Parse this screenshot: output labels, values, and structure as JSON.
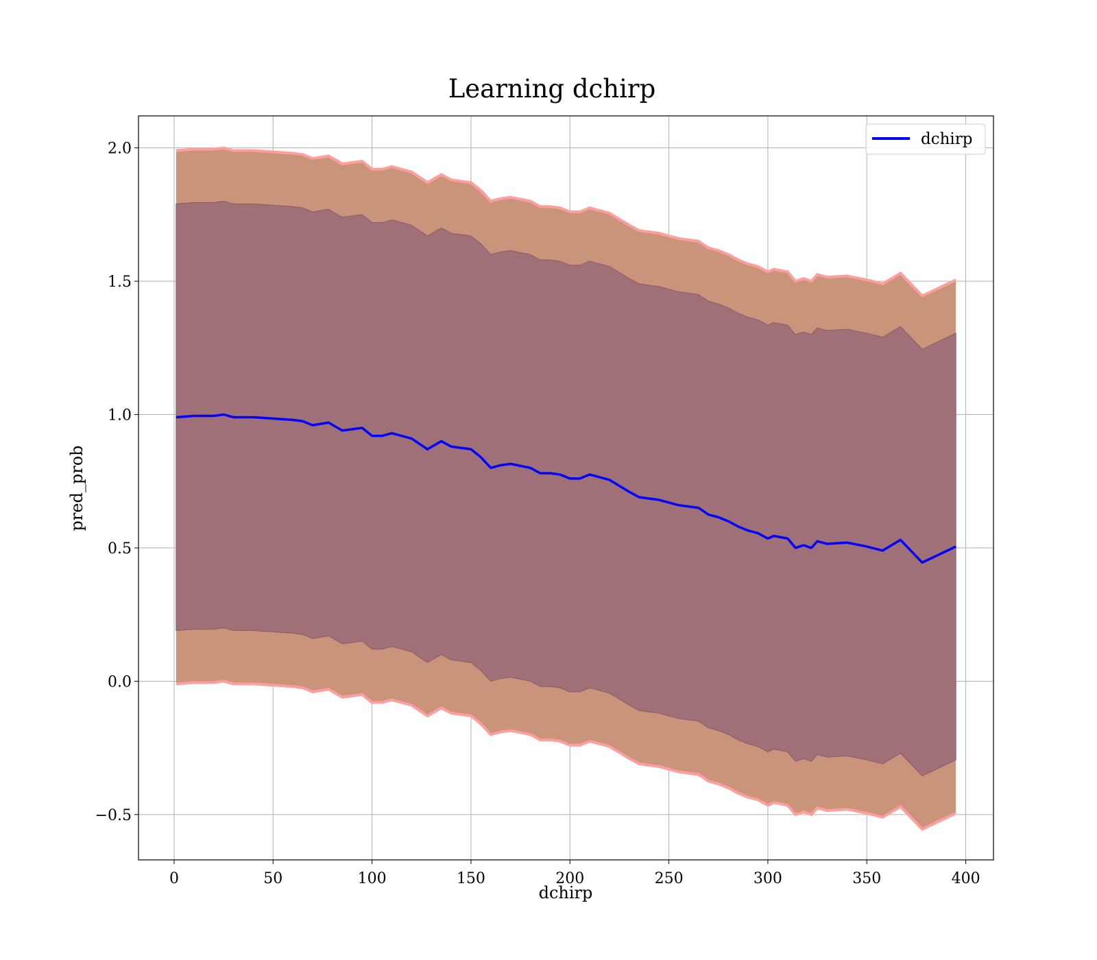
{
  "chart_data": {
    "type": "line",
    "title": "Learning dchirp",
    "xlabel": "dchirp",
    "ylabel": "pred_prob",
    "xlim": [
      -18,
      414
    ],
    "ylim": [
      -0.67,
      2.12
    ],
    "xticks": [
      0,
      50,
      100,
      150,
      200,
      250,
      300,
      350,
      400
    ],
    "yticks": [
      -0.5,
      0.0,
      0.5,
      1.0,
      1.5,
      2.0
    ],
    "ytick_labels": [
      "−0.5",
      "0.0",
      "0.5",
      "1.0",
      "1.5",
      "2.0"
    ],
    "grid": true,
    "legend": {
      "position": "top-right",
      "entries": [
        "dchirp"
      ]
    },
    "colors": {
      "line": "#0000ff",
      "outer_band": "#c99479",
      "inner_band": "#a07079",
      "band_edge": "#ff9e9e"
    },
    "series": [
      {
        "name": "dchirp",
        "x": [
          1,
          10,
          20,
          25,
          30,
          40,
          50,
          60,
          65,
          70,
          78,
          85,
          95,
          100,
          105,
          110,
          120,
          128,
          135,
          140,
          150,
          155,
          160,
          165,
          170,
          180,
          185,
          190,
          195,
          200,
          205,
          210,
          215,
          220,
          230,
          235,
          245,
          255,
          265,
          270,
          275,
          280,
          285,
          290,
          295,
          300,
          303,
          310,
          314,
          318,
          322,
          325,
          330,
          340,
          350,
          358,
          367,
          378,
          395
        ],
        "y": [
          0.99,
          0.995,
          0.995,
          1.0,
          0.99,
          0.99,
          0.985,
          0.98,
          0.975,
          0.96,
          0.97,
          0.94,
          0.95,
          0.92,
          0.92,
          0.93,
          0.91,
          0.87,
          0.9,
          0.88,
          0.87,
          0.84,
          0.8,
          0.81,
          0.815,
          0.8,
          0.78,
          0.78,
          0.775,
          0.76,
          0.76,
          0.775,
          0.765,
          0.755,
          0.71,
          0.69,
          0.68,
          0.66,
          0.65,
          0.625,
          0.615,
          0.6,
          0.58,
          0.565,
          0.555,
          0.535,
          0.545,
          0.535,
          0.5,
          0.51,
          0.5,
          0.525,
          0.515,
          0.52,
          0.505,
          0.49,
          0.53,
          0.445,
          0.505
        ]
      }
    ],
    "bands": [
      {
        "name": "outer",
        "offset": 1.0
      },
      {
        "name": "inner",
        "offset": 0.8
      }
    ]
  }
}
